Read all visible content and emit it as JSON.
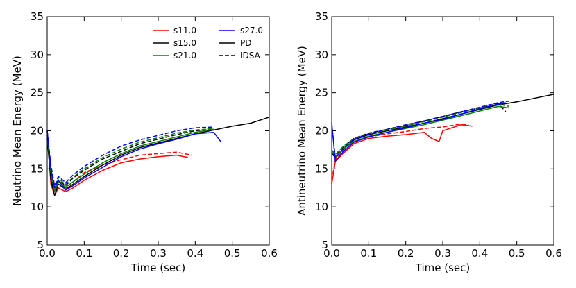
{
  "chart_data": [
    {
      "type": "line",
      "title": "",
      "xlabel": "Time (sec)",
      "ylabel": "Neutrino Mean Energy (MeV)",
      "xlim": [
        0,
        0.6
      ],
      "ylim": [
        5,
        35
      ],
      "xticks": [
        "0.0",
        "0.1",
        "0.2",
        "0.3",
        "0.4",
        "0.5",
        "0.6"
      ],
      "yticks": [
        "5",
        "10",
        "15",
        "20",
        "25",
        "30",
        "35"
      ],
      "legend": {
        "placement": "top-right",
        "entries": [
          {
            "label": "s11.0",
            "color": "#ff0000",
            "dash": "solid"
          },
          {
            "label": "s15.0",
            "color": "#000000",
            "dash": "solid"
          },
          {
            "label": "s21.0",
            "color": "#008000",
            "dash": "solid"
          },
          {
            "label": "s27.0",
            "color": "#0000ff",
            "dash": "solid"
          },
          {
            "label": "PD",
            "color": "#000000",
            "dash": "solid"
          },
          {
            "label": "IDSA",
            "color": "#000000",
            "dash": "dashed"
          }
        ]
      },
      "series": [
        {
          "name": "s11.0 PD",
          "color": "#ff0000",
          "dash": "solid",
          "x": [
            0.0,
            0.01,
            0.02,
            0.03,
            0.05,
            0.07,
            0.1,
            0.15,
            0.2,
            0.25,
            0.3,
            0.35,
            0.38
          ],
          "y": [
            20.0,
            13.0,
            11.5,
            12.5,
            12.0,
            12.5,
            13.5,
            14.8,
            15.8,
            16.3,
            16.6,
            16.8,
            16.5
          ]
        },
        {
          "name": "s11.0 IDSA",
          "color": "#ff0000",
          "dash": "dashed",
          "x": [
            0.0,
            0.01,
            0.02,
            0.03,
            0.05,
            0.07,
            0.1,
            0.15,
            0.2,
            0.25,
            0.3,
            0.35,
            0.39
          ],
          "y": [
            20.0,
            14.0,
            12.0,
            13.0,
            12.5,
            13.3,
            14.5,
            15.5,
            16.2,
            16.8,
            17.0,
            17.2,
            16.8
          ]
        },
        {
          "name": "s15.0 PD",
          "color": "#000000",
          "dash": "solid",
          "x": [
            0.0,
            0.01,
            0.02,
            0.03,
            0.05,
            0.07,
            0.1,
            0.15,
            0.2,
            0.25,
            0.3,
            0.35,
            0.4,
            0.45,
            0.5,
            0.55,
            0.6
          ],
          "y": [
            19.0,
            13.5,
            11.5,
            13.0,
            12.3,
            13.0,
            14.0,
            15.5,
            16.8,
            17.8,
            18.4,
            19.0,
            19.6,
            20.1,
            20.6,
            21.0,
            21.8
          ]
        },
        {
          "name": "s15.0 IDSA",
          "color": "#000000",
          "dash": "dashed",
          "x": [
            0.0,
            0.01,
            0.02,
            0.03,
            0.05,
            0.07,
            0.1,
            0.15,
            0.2,
            0.25,
            0.3,
            0.35,
            0.4,
            0.45
          ],
          "y": [
            19.0,
            14.0,
            12.0,
            13.5,
            12.8,
            13.8,
            14.8,
            16.3,
            17.3,
            18.3,
            18.9,
            19.5,
            20.0,
            20.2
          ]
        },
        {
          "name": "s21.0 PD",
          "color": "#008000",
          "dash": "solid",
          "x": [
            0.0,
            0.01,
            0.02,
            0.03,
            0.05,
            0.07,
            0.1,
            0.15,
            0.2,
            0.25,
            0.3,
            0.35,
            0.4,
            0.45
          ],
          "y": [
            19.5,
            14.5,
            12.0,
            13.3,
            12.6,
            13.3,
            14.3,
            15.8,
            17.0,
            18.0,
            18.6,
            19.2,
            19.8,
            20.2
          ]
        },
        {
          "name": "s21.0 IDSA",
          "color": "#008000",
          "dash": "dashed",
          "x": [
            0.0,
            0.01,
            0.02,
            0.03,
            0.05,
            0.07,
            0.1,
            0.15,
            0.2,
            0.25,
            0.3,
            0.35,
            0.4,
            0.45
          ],
          "y": [
            19.5,
            15.0,
            12.3,
            13.7,
            13.0,
            13.9,
            15.0,
            16.5,
            17.6,
            18.5,
            19.1,
            19.7,
            20.1,
            20.3
          ]
        },
        {
          "name": "s27.0 PD",
          "color": "#0000ff",
          "dash": "solid",
          "x": [
            0.0,
            0.01,
            0.02,
            0.03,
            0.05,
            0.07,
            0.1,
            0.15,
            0.2,
            0.25,
            0.3,
            0.35,
            0.4,
            0.45,
            0.47
          ],
          "y": [
            20.0,
            15.0,
            12.5,
            13.5,
            12.2,
            12.8,
            13.8,
            15.2,
            16.6,
            17.6,
            18.3,
            18.9,
            19.6,
            19.8,
            18.5
          ]
        },
        {
          "name": "s27.0 IDSA",
          "color": "#0000ff",
          "dash": "dashed",
          "x": [
            0.0,
            0.01,
            0.02,
            0.03,
            0.05,
            0.07,
            0.1,
            0.15,
            0.2,
            0.25,
            0.3,
            0.35,
            0.4,
            0.45
          ],
          "y": [
            20.0,
            15.5,
            12.8,
            14.0,
            13.2,
            14.2,
            15.3,
            16.8,
            18.0,
            18.8,
            19.4,
            20.0,
            20.4,
            20.5
          ]
        }
      ]
    },
    {
      "type": "line",
      "title": "",
      "xlabel": "Time (sec)",
      "ylabel": "Antineutrino Mean Energy (MeV)",
      "xlim": [
        0,
        0.6
      ],
      "ylim": [
        5,
        35
      ],
      "xticks": [
        "0.0",
        "0.1",
        "0.2",
        "0.3",
        "0.4",
        "0.5",
        "0.6"
      ],
      "yticks": [
        "5",
        "10",
        "15",
        "20",
        "25",
        "30",
        "35"
      ],
      "series": [
        {
          "name": "s11.0 PD",
          "color": "#ff0000",
          "dash": "solid",
          "x": [
            0.0,
            0.01,
            0.03,
            0.06,
            0.1,
            0.15,
            0.2,
            0.25,
            0.27,
            0.29,
            0.3,
            0.35,
            0.38
          ],
          "y": [
            13.0,
            16.0,
            17.0,
            18.3,
            19.0,
            19.3,
            19.5,
            19.8,
            19.0,
            18.6,
            20.0,
            20.8,
            20.6
          ]
        },
        {
          "name": "s11.0 IDSA",
          "color": "#ff0000",
          "dash": "dashed",
          "x": [
            0.0,
            0.01,
            0.03,
            0.06,
            0.1,
            0.15,
            0.2,
            0.25,
            0.3,
            0.35,
            0.37
          ],
          "y": [
            13.5,
            16.2,
            17.3,
            18.5,
            19.2,
            19.6,
            19.9,
            20.3,
            20.5,
            20.9,
            20.8
          ]
        },
        {
          "name": "s15.0 PD",
          "color": "#000000",
          "dash": "solid",
          "x": [
            0.0,
            0.01,
            0.03,
            0.06,
            0.1,
            0.15,
            0.2,
            0.25,
            0.3,
            0.35,
            0.4,
            0.45,
            0.5,
            0.55,
            0.6
          ],
          "y": [
            17.0,
            16.5,
            17.5,
            18.8,
            19.5,
            20.0,
            20.5,
            21.0,
            21.6,
            22.2,
            22.8,
            23.4,
            23.8,
            24.3,
            24.8
          ]
        },
        {
          "name": "s15.0 IDSA",
          "color": "#000000",
          "dash": "dashed",
          "x": [
            0.0,
            0.01,
            0.03,
            0.06,
            0.1,
            0.15,
            0.2,
            0.25,
            0.3,
            0.35,
            0.4,
            0.45,
            0.47
          ],
          "y": [
            17.0,
            16.8,
            17.8,
            19.0,
            19.7,
            20.2,
            20.7,
            21.3,
            21.9,
            22.5,
            23.0,
            23.6,
            22.5
          ]
        },
        {
          "name": "s21.0 PD",
          "color": "#008000",
          "dash": "solid",
          "x": [
            0.0,
            0.01,
            0.03,
            0.06,
            0.1,
            0.15,
            0.2,
            0.25,
            0.3,
            0.35,
            0.4,
            0.45,
            0.48
          ],
          "y": [
            17.5,
            16.6,
            17.6,
            18.6,
            19.3,
            19.8,
            20.3,
            20.8,
            21.4,
            22.0,
            22.6,
            23.2,
            23.0
          ]
        },
        {
          "name": "s21.0 IDSA",
          "color": "#008000",
          "dash": "dashed",
          "x": [
            0.0,
            0.01,
            0.03,
            0.06,
            0.1,
            0.15,
            0.2,
            0.25,
            0.3,
            0.35,
            0.4,
            0.45,
            0.48
          ],
          "y": [
            17.5,
            16.9,
            17.9,
            19.0,
            19.6,
            20.1,
            20.6,
            21.2,
            21.8,
            22.4,
            23.0,
            23.5,
            23.2
          ]
        },
        {
          "name": "s27.0 PD",
          "color": "#0000ff",
          "dash": "solid",
          "x": [
            0.0,
            0.01,
            0.03,
            0.06,
            0.1,
            0.15,
            0.2,
            0.25,
            0.3,
            0.35,
            0.4,
            0.45,
            0.47
          ],
          "y": [
            21.0,
            16.0,
            17.2,
            18.5,
            19.2,
            19.8,
            20.4,
            21.0,
            21.5,
            22.2,
            22.9,
            23.5,
            23.7
          ]
        },
        {
          "name": "s27.0 IDSA",
          "color": "#0000ff",
          "dash": "dashed",
          "x": [
            0.0,
            0.01,
            0.03,
            0.06,
            0.1,
            0.15,
            0.2,
            0.25,
            0.3,
            0.35,
            0.4,
            0.45,
            0.48
          ],
          "y": [
            21.0,
            16.4,
            17.6,
            18.9,
            19.6,
            20.2,
            20.8,
            21.3,
            21.9,
            22.5,
            23.1,
            23.7,
            23.9
          ]
        }
      ]
    }
  ]
}
